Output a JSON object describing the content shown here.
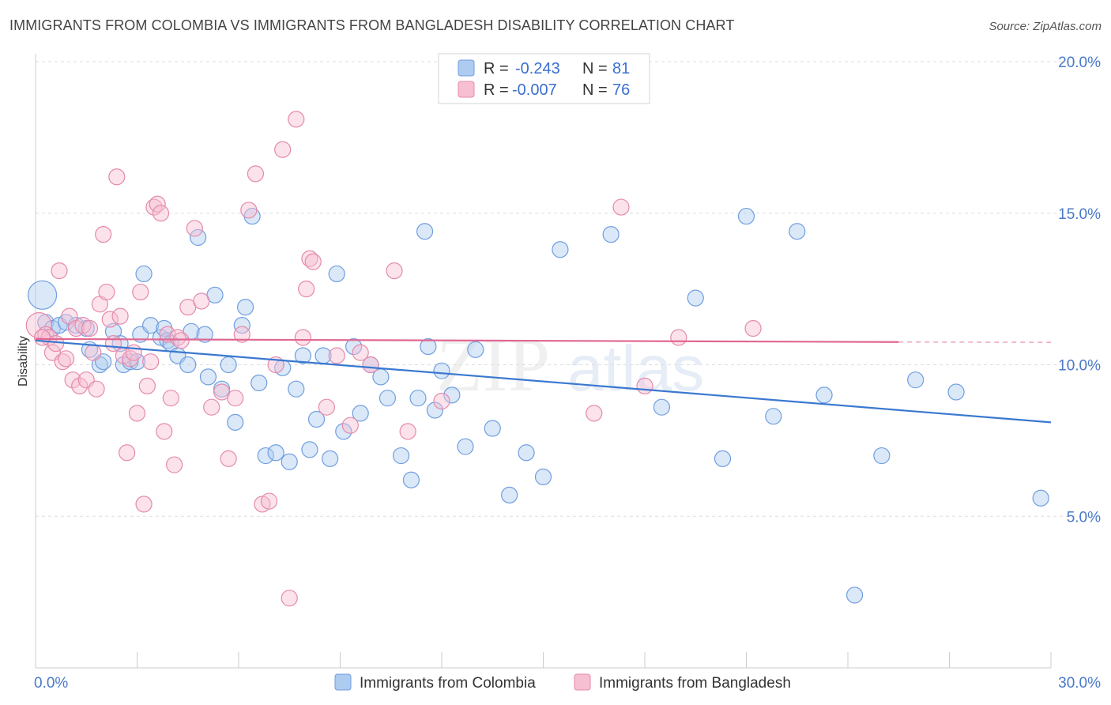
{
  "header": {
    "title": "IMMIGRANTS FROM COLOMBIA VS IMMIGRANTS FROM BANGLADESH DISABILITY CORRELATION CHART",
    "source": "Source: ZipAtlas.com"
  },
  "watermark": {
    "zip": "ZIP",
    "atlas": "atlas"
  },
  "legend": {
    "rows": [
      {
        "r_label": "R =",
        "r_value": "-0.243",
        "n_label": "N =",
        "n_value": "81"
      },
      {
        "r_label": "R =",
        "r_value": "-0.007",
        "n_label": "N =",
        "n_value": "76"
      }
    ]
  },
  "bottom_legend": [
    {
      "label": "Immigrants from Colombia"
    },
    {
      "label": "Immigrants from Bangladesh"
    }
  ],
  "colors": {
    "colombia_fill": "#aecbf0",
    "colombia_stroke": "#6f9ee0",
    "colombia_line": "#3a78d0",
    "bangladesh_fill": "#f7bfd2",
    "bangladesh_stroke": "#e58aab",
    "bangladesh_line": "#e06792"
  },
  "chart_data": {
    "type": "scatter",
    "title": "IMMIGRANTS FROM COLOMBIA VS IMMIGRANTS FROM BANGLADESH DISABILITY CORRELATION CHART",
    "xlabel": "",
    "ylabel": "Disability",
    "xlim": [
      0,
      30
    ],
    "ylim": [
      0,
      20
    ],
    "x_tick_labels": [
      "0.0%",
      "30.0%"
    ],
    "y_ticks": [
      5,
      10,
      15,
      20
    ],
    "y_tick_labels": [
      "5.0%",
      "10.0%",
      "15.0%",
      "20.0%"
    ],
    "grid": "horizontal dashed",
    "legend_placement": "top-center",
    "series": [
      {
        "name": "Immigrants from Colombia",
        "r": -0.243,
        "n": 81,
        "trend": {
          "x": [
            0,
            30
          ],
          "y": [
            10.8,
            8.1
          ]
        },
        "points": [
          [
            0.2,
            12.3,
            18
          ],
          [
            0.3,
            11.4,
            10
          ],
          [
            0.5,
            11.2,
            10
          ],
          [
            0.7,
            11.3,
            10
          ],
          [
            0.9,
            11.4,
            10
          ],
          [
            1.2,
            11.3,
            10
          ],
          [
            1.5,
            11.2,
            10
          ],
          [
            1.6,
            10.5,
            10
          ],
          [
            1.9,
            10.0,
            10
          ],
          [
            2.0,
            10.1,
            10
          ],
          [
            2.3,
            11.1,
            10
          ],
          [
            2.5,
            10.7,
            10
          ],
          [
            2.6,
            10.0,
            10
          ],
          [
            2.8,
            10.1,
            10
          ],
          [
            3.0,
            10.1,
            10
          ],
          [
            3.1,
            11.0,
            10
          ],
          [
            3.2,
            13.0,
            10
          ],
          [
            3.4,
            11.3,
            10
          ],
          [
            3.7,
            10.9,
            10
          ],
          [
            3.8,
            11.2,
            10
          ],
          [
            3.9,
            10.8,
            10
          ],
          [
            4.0,
            10.7,
            10
          ],
          [
            4.2,
            10.3,
            10
          ],
          [
            4.5,
            10.0,
            10
          ],
          [
            4.6,
            11.1,
            10
          ],
          [
            4.8,
            14.2,
            10
          ],
          [
            5.0,
            11.0,
            10
          ],
          [
            5.1,
            9.6,
            10
          ],
          [
            5.3,
            12.3,
            10
          ],
          [
            5.5,
            9.2,
            10
          ],
          [
            5.7,
            10.0,
            10
          ],
          [
            5.9,
            8.1,
            10
          ],
          [
            6.1,
            11.3,
            10
          ],
          [
            6.2,
            11.9,
            10
          ],
          [
            6.4,
            14.9,
            10
          ],
          [
            6.6,
            9.4,
            10
          ],
          [
            6.8,
            7.0,
            10
          ],
          [
            7.1,
            7.1,
            10
          ],
          [
            7.3,
            9.9,
            10
          ],
          [
            7.5,
            6.8,
            10
          ],
          [
            7.7,
            9.2,
            10
          ],
          [
            7.9,
            10.3,
            10
          ],
          [
            8.1,
            7.2,
            10
          ],
          [
            8.3,
            8.2,
            10
          ],
          [
            8.5,
            10.3,
            10
          ],
          [
            8.7,
            6.9,
            10
          ],
          [
            8.9,
            13.0,
            10
          ],
          [
            9.1,
            7.8,
            10
          ],
          [
            9.4,
            10.6,
            10
          ],
          [
            9.6,
            8.4,
            10
          ],
          [
            9.9,
            10.0,
            10
          ],
          [
            10.2,
            9.6,
            10
          ],
          [
            10.4,
            8.9,
            10
          ],
          [
            10.8,
            7.0,
            10
          ],
          [
            11.1,
            6.2,
            10
          ],
          [
            11.3,
            8.9,
            10
          ],
          [
            11.5,
            14.4,
            10
          ],
          [
            11.6,
            10.6,
            10
          ],
          [
            11.8,
            8.5,
            10
          ],
          [
            12.0,
            9.8,
            10
          ],
          [
            12.3,
            9.0,
            10
          ],
          [
            12.7,
            7.3,
            10
          ],
          [
            13.0,
            10.5,
            10
          ],
          [
            13.5,
            7.9,
            10
          ],
          [
            14.0,
            5.7,
            10
          ],
          [
            14.5,
            7.1,
            10
          ],
          [
            15.0,
            6.3,
            10
          ],
          [
            15.5,
            13.8,
            10
          ],
          [
            17.0,
            14.3,
            10
          ],
          [
            18.5,
            8.6,
            10
          ],
          [
            19.5,
            12.2,
            10
          ],
          [
            20.3,
            6.9,
            10
          ],
          [
            21.0,
            14.9,
            10
          ],
          [
            21.8,
            8.3,
            10
          ],
          [
            22.5,
            14.4,
            10
          ],
          [
            23.3,
            9.0,
            10
          ],
          [
            24.2,
            2.4,
            10
          ],
          [
            25.0,
            7.0,
            10
          ],
          [
            26.0,
            9.5,
            10
          ],
          [
            27.2,
            9.1,
            10
          ],
          [
            29.7,
            5.6,
            10
          ]
        ]
      },
      {
        "name": "Immigrants from Bangladesh",
        "r": -0.007,
        "n": 76,
        "trend": {
          "x": [
            0,
            25.5
          ],
          "y": [
            10.85,
            10.75
          ]
        },
        "trend_dashed_extension": {
          "x": [
            25.5,
            30
          ],
          "y": [
            10.75,
            10.74
          ]
        },
        "points": [
          [
            0.1,
            11.3,
            16
          ],
          [
            0.3,
            11.0,
            10
          ],
          [
            0.4,
            10.9,
            10
          ],
          [
            0.5,
            10.4,
            10
          ],
          [
            0.6,
            10.7,
            10
          ],
          [
            0.7,
            13.1,
            10
          ],
          [
            0.8,
            10.1,
            10
          ],
          [
            0.9,
            10.2,
            10
          ],
          [
            1.0,
            11.6,
            10
          ],
          [
            1.1,
            9.5,
            10
          ],
          [
            1.2,
            11.2,
            10
          ],
          [
            1.3,
            9.3,
            10
          ],
          [
            1.4,
            11.3,
            10
          ],
          [
            1.5,
            9.5,
            10
          ],
          [
            1.6,
            11.2,
            10
          ],
          [
            1.7,
            10.4,
            10
          ],
          [
            1.8,
            9.2,
            10
          ],
          [
            1.9,
            12.0,
            10
          ],
          [
            2.0,
            14.3,
            10
          ],
          [
            2.1,
            12.4,
            10
          ],
          [
            2.2,
            11.5,
            10
          ],
          [
            2.3,
            10.7,
            10
          ],
          [
            2.4,
            16.2,
            10
          ],
          [
            2.5,
            11.6,
            10
          ],
          [
            2.6,
            10.3,
            10
          ],
          [
            2.7,
            7.1,
            10
          ],
          [
            2.8,
            10.2,
            10
          ],
          [
            2.9,
            10.4,
            10
          ],
          [
            3.0,
            8.4,
            10
          ],
          [
            3.1,
            12.4,
            10
          ],
          [
            3.2,
            5.4,
            10
          ],
          [
            3.3,
            9.3,
            10
          ],
          [
            3.4,
            10.1,
            10
          ],
          [
            3.5,
            15.2,
            10
          ],
          [
            3.6,
            15.3,
            10
          ],
          [
            3.7,
            15.0,
            10
          ],
          [
            3.8,
            7.8,
            10
          ],
          [
            3.9,
            11.0,
            10
          ],
          [
            4.0,
            8.9,
            10
          ],
          [
            4.1,
            6.7,
            10
          ],
          [
            4.2,
            10.9,
            10
          ],
          [
            4.3,
            10.8,
            10
          ],
          [
            4.5,
            11.9,
            10
          ],
          [
            4.7,
            14.5,
            10
          ],
          [
            4.9,
            12.1,
            10
          ],
          [
            5.2,
            8.6,
            10
          ],
          [
            5.5,
            9.1,
            10
          ],
          [
            5.7,
            6.9,
            10
          ],
          [
            5.9,
            8.9,
            10
          ],
          [
            6.1,
            11.0,
            10
          ],
          [
            6.3,
            15.1,
            10
          ],
          [
            6.5,
            16.3,
            10
          ],
          [
            6.7,
            5.4,
            10
          ],
          [
            6.9,
            5.5,
            10
          ],
          [
            7.1,
            10.0,
            10
          ],
          [
            7.3,
            17.1,
            10
          ],
          [
            7.5,
            2.3,
            10
          ],
          [
            7.7,
            18.1,
            10
          ],
          [
            7.9,
            10.9,
            10
          ],
          [
            8.0,
            12.5,
            10
          ],
          [
            8.1,
            13.5,
            10
          ],
          [
            8.2,
            13.4,
            10
          ],
          [
            8.6,
            8.6,
            10
          ],
          [
            8.9,
            10.3,
            10
          ],
          [
            9.3,
            8.0,
            10
          ],
          [
            9.6,
            10.4,
            10
          ],
          [
            9.9,
            10.0,
            10
          ],
          [
            10.6,
            13.1,
            10
          ],
          [
            11.0,
            7.8,
            10
          ],
          [
            12.0,
            8.8,
            10
          ],
          [
            16.5,
            8.4,
            10
          ],
          [
            17.3,
            15.2,
            10
          ],
          [
            18.0,
            9.3,
            10
          ],
          [
            19.0,
            10.9,
            10
          ],
          [
            21.2,
            11.2,
            10
          ],
          [
            0.2,
            10.9,
            10
          ]
        ]
      }
    ]
  }
}
